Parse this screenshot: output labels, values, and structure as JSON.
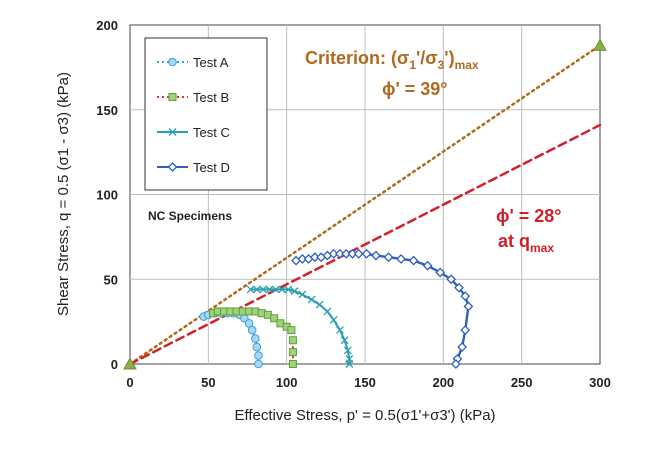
{
  "chart_data": {
    "type": "scatter",
    "xlabel": "Effective Stress, p' = 0.5(σ1'+σ3')   (kPa)",
    "ylabel": "Shear Stress, q = 0.5 (σ1 - σ3)   (kPa)",
    "xlim": [
      0,
      300
    ],
    "ylim": [
      0,
      200
    ],
    "xticks": [
      0,
      50,
      100,
      150,
      200,
      250,
      300
    ],
    "yticks": [
      0,
      50,
      100,
      150,
      200
    ],
    "grid": true,
    "legend": "top-left",
    "series": [
      {
        "name": "Test A",
        "color": "#3a9fd6",
        "marker": "circle",
        "points": [
          [
            47,
            28
          ],
          [
            50,
            29
          ],
          [
            54,
            30
          ],
          [
            58,
            30
          ],
          [
            62,
            30
          ],
          [
            66,
            30
          ],
          [
            70,
            29
          ],
          [
            73,
            27
          ],
          [
            76,
            24
          ],
          [
            78,
            20
          ],
          [
            80,
            15
          ],
          [
            81,
            10
          ],
          [
            82,
            5
          ],
          [
            82,
            0
          ]
        ]
      },
      {
        "name": "Test B",
        "color": "#c03a2b",
        "marker": "square",
        "points": [
          [
            53,
            30
          ],
          [
            56,
            31
          ],
          [
            60,
            31
          ],
          [
            64,
            31
          ],
          [
            68,
            31
          ],
          [
            72,
            31
          ],
          [
            76,
            31
          ],
          [
            80,
            31
          ],
          [
            84,
            30
          ],
          [
            88,
            29
          ],
          [
            92,
            27
          ],
          [
            96,
            24
          ],
          [
            100,
            22
          ],
          [
            103,
            20
          ],
          [
            104,
            14
          ],
          [
            104,
            7
          ],
          [
            104,
            0
          ]
        ]
      },
      {
        "name": "Test C",
        "color": "#2a9fae",
        "marker": "x",
        "points": [
          [
            77,
            44
          ],
          [
            81,
            44
          ],
          [
            85,
            44
          ],
          [
            89,
            44
          ],
          [
            93,
            44
          ],
          [
            97,
            44
          ],
          [
            101,
            44
          ],
          [
            105,
            43
          ],
          [
            110,
            41
          ],
          [
            116,
            38
          ],
          [
            121,
            35
          ],
          [
            126,
            31
          ],
          [
            130,
            26
          ],
          [
            134,
            20
          ],
          [
            137,
            14
          ],
          [
            139,
            8
          ],
          [
            140,
            3
          ],
          [
            140,
            0
          ]
        ]
      },
      {
        "name": "Test D",
        "color": "#2f5fbf",
        "marker": "diamond",
        "points": [
          [
            106,
            61
          ],
          [
            110,
            62
          ],
          [
            114,
            62
          ],
          [
            118,
            63
          ],
          [
            122,
            63
          ],
          [
            126,
            64
          ],
          [
            130,
            65
          ],
          [
            134,
            65
          ],
          [
            138,
            65
          ],
          [
            142,
            65
          ],
          [
            146,
            65
          ],
          [
            151,
            65
          ],
          [
            157,
            64
          ],
          [
            165,
            63
          ],
          [
            173,
            62
          ],
          [
            181,
            61
          ],
          [
            190,
            58
          ],
          [
            198,
            54
          ],
          [
            205,
            50
          ],
          [
            210,
            45
          ],
          [
            214,
            40
          ],
          [
            216,
            34
          ],
          [
            214,
            20
          ],
          [
            212,
            10
          ],
          [
            209,
            3
          ],
          [
            208,
            0
          ]
        ]
      }
    ],
    "lines": [
      {
        "name": "Criterion: (σ1'/σ3')max",
        "points": [
          [
            0,
            0
          ],
          [
            300,
            188
          ]
        ],
        "color": "#b06a1f",
        "style": "dotted"
      },
      {
        "name": "φ' = 28° at qmax",
        "points": [
          [
            0,
            0
          ],
          [
            300,
            141
          ]
        ],
        "color": "#d0212a",
        "style": "dashed"
      }
    ],
    "annotations": {
      "criterion_main": "Criterion: (σ",
      "criterion_sub1": "1",
      "criterion_mid": "'/σ",
      "criterion_sub3": "3",
      "criterion_end": "')",
      "criterion_subscript": "max",
      "phi39": "ϕ' = 39°",
      "phi28": "ϕ' = 28°",
      "at_q": "at q",
      "at_q_subscript": "max",
      "nc_label": "NC Specimens"
    }
  }
}
